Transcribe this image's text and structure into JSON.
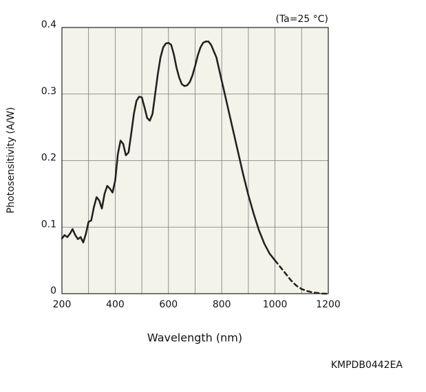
{
  "chart_data": {
    "type": "line",
    "condition": "(Ta=25 °C)",
    "y_label": "Photosensitivity (A/W)",
    "x_label": "Wavelength (nm)",
    "code": "KMPDB0442EA",
    "xlim": [
      200,
      1200
    ],
    "xticks": [
      200,
      400,
      600,
      800,
      1000,
      1200
    ],
    "xminor": [
      300,
      500,
      700,
      900,
      1100
    ],
    "ylim": [
      0,
      0.4
    ],
    "yticks": [
      0,
      0.1,
      0.2,
      0.3,
      0.4
    ],
    "grid": true,
    "plot_background": "#f4f3ea",
    "series": [
      {
        "color": "#222222",
        "style": "solid",
        "x": [
          200,
          210,
          220,
          230,
          240,
          250,
          260,
          270,
          280,
          290,
          300,
          310,
          320,
          330,
          340,
          350,
          360,
          370,
          380,
          390,
          400,
          410,
          420,
          430,
          440,
          450,
          460,
          470,
          480,
          490,
          500,
          510,
          520,
          530,
          540,
          550,
          560,
          570,
          580,
          590,
          600,
          610,
          620,
          630,
          640,
          650,
          660,
          670,
          680,
          690,
          700,
          710,
          720,
          730,
          740,
          750,
          760,
          780,
          800,
          820,
          840,
          860,
          880,
          900,
          920,
          940,
          960,
          980,
          1000
        ],
        "values": [
          0.083,
          0.088,
          0.085,
          0.09,
          0.097,
          0.088,
          0.082,
          0.085,
          0.077,
          0.09,
          0.108,
          0.11,
          0.13,
          0.145,
          0.14,
          0.128,
          0.15,
          0.162,
          0.158,
          0.152,
          0.17,
          0.21,
          0.23,
          0.225,
          0.208,
          0.212,
          0.24,
          0.27,
          0.29,
          0.296,
          0.295,
          0.28,
          0.264,
          0.26,
          0.27,
          0.3,
          0.33,
          0.355,
          0.37,
          0.376,
          0.377,
          0.374,
          0.36,
          0.34,
          0.325,
          0.315,
          0.312,
          0.313,
          0.318,
          0.328,
          0.342,
          0.358,
          0.37,
          0.377,
          0.379,
          0.379,
          0.374,
          0.355,
          0.32,
          0.285,
          0.25,
          0.215,
          0.18,
          0.148,
          0.12,
          0.095,
          0.075,
          0.06,
          0.05
        ]
      },
      {
        "color": "#222222",
        "style": "dashed",
        "x": [
          1000,
          1020,
          1040,
          1060,
          1080,
          1100,
          1120,
          1140,
          1160,
          1180,
          1200
        ],
        "values": [
          0.05,
          0.04,
          0.03,
          0.02,
          0.012,
          0.007,
          0.004,
          0.002,
          0.001,
          0,
          0
        ]
      }
    ]
  }
}
